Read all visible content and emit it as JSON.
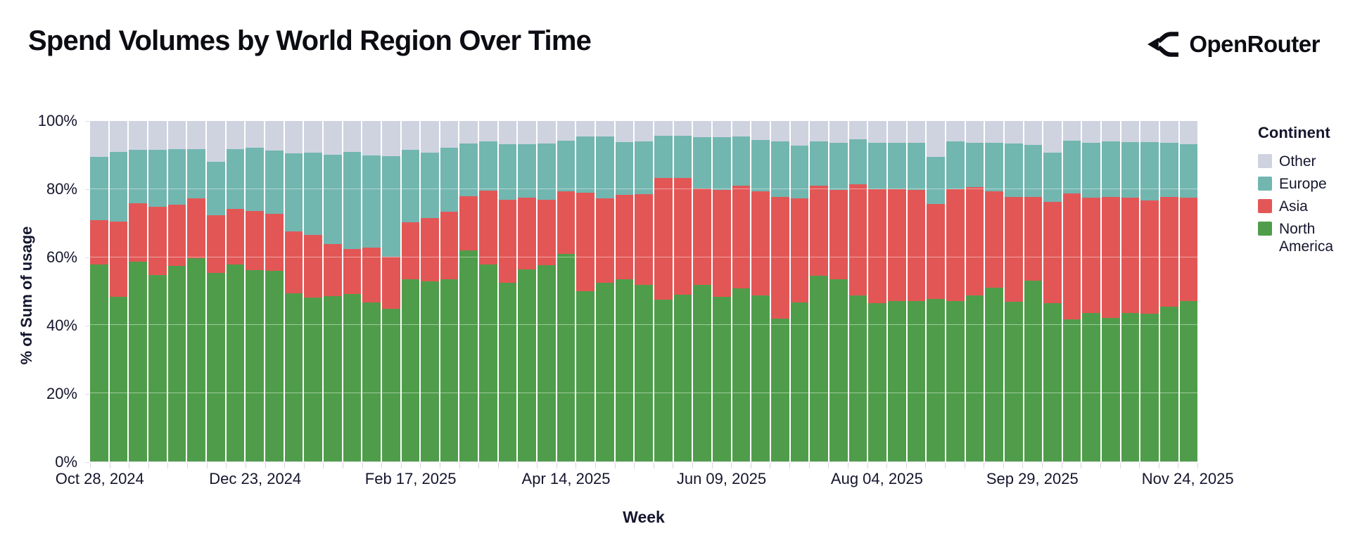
{
  "header": {
    "title": "Spend Volumes by World Region Over Time",
    "brand": "OpenRouter"
  },
  "chart_data": {
    "type": "bar",
    "stacked": true,
    "normalized_100pct": true,
    "title": "Spend Volumes by World Region Over Time",
    "xlabel": "Week",
    "ylabel": "% of Sum of usage",
    "ylim": [
      0,
      100
    ],
    "grid": "subtle white lines over bars",
    "n_bars": 57,
    "bar_frequency": "weekly",
    "yticks": [
      {
        "pct": 0,
        "label": "0%"
      },
      {
        "pct": 20,
        "label": "20%"
      },
      {
        "pct": 40,
        "label": "40%"
      },
      {
        "pct": 60,
        "label": "60%"
      },
      {
        "pct": 80,
        "label": "80%"
      },
      {
        "pct": 100,
        "label": "100%"
      }
    ],
    "gridlines_pct": [
      20,
      40,
      60,
      80
    ],
    "xticks": [
      {
        "index": 0,
        "label": "Oct 28, 2024"
      },
      {
        "index": 8,
        "label": "Dec 23, 2024"
      },
      {
        "index": 16,
        "label": "Feb 17, 2025"
      },
      {
        "index": 24,
        "label": "Apr 14, 2025"
      },
      {
        "index": 32,
        "label": "Jun 09, 2025"
      },
      {
        "index": 40,
        "label": "Aug 04, 2025"
      },
      {
        "index": 48,
        "label": "Sep 29, 2025"
      },
      {
        "index": 56,
        "label": "Nov 24, 2025"
      }
    ],
    "series": [
      {
        "name": "North America",
        "color": "#4f9d4a",
        "values": [
          57.8,
          48.4,
          58.6,
          54.7,
          57.5,
          59.7,
          55.3,
          57.8,
          56.1,
          55.9,
          49.4,
          48.1,
          48.6,
          49.2,
          46.7,
          44.8,
          53.6,
          52.8,
          53.6,
          61.9,
          57.9,
          52.4,
          56.3,
          57.7,
          61.0,
          50.0,
          52.4,
          53.6,
          51.9,
          47.6,
          49.0,
          51.9,
          48.3,
          50.8,
          48.8,
          41.9,
          46.7,
          54.5,
          53.6,
          48.8,
          46.4,
          47.1,
          47.2,
          47.8,
          47.2,
          48.8,
          51.0,
          46.9,
          53.1,
          46.4,
          41.7,
          43.6,
          42.1,
          43.6,
          43.4,
          45.5,
          47.2
        ]
      },
      {
        "name": "Asia",
        "color": "#e25756",
        "values": [
          13.1,
          22.1,
          17.3,
          20.1,
          18.0,
          17.6,
          17.1,
          16.4,
          17.4,
          16.8,
          18.2,
          18.5,
          15.3,
          13.1,
          16.1,
          15.4,
          16.7,
          18.6,
          19.8,
          16.0,
          21.6,
          24.4,
          21.1,
          19.2,
          18.3,
          29.0,
          24.8,
          24.7,
          26.7,
          35.6,
          34.2,
          28.3,
          31.5,
          30.1,
          30.6,
          35.8,
          30.5,
          26.4,
          26.2,
          32.6,
          33.6,
          32.9,
          32.5,
          27.9,
          32.8,
          31.7,
          28.3,
          30.7,
          24.5,
          29.8,
          37.1,
          33.8,
          35.6,
          33.8,
          33.3,
          32.2,
          30.2
        ]
      },
      {
        "name": "Europe",
        "color": "#72b6b0",
        "values": [
          18.5,
          20.5,
          15.7,
          16.8,
          16.3,
          14.5,
          15.6,
          17.5,
          18.7,
          18.6,
          22.8,
          24.1,
          26.1,
          28.7,
          27.1,
          29.5,
          21.2,
          19.4,
          18.7,
          15.4,
          14.5,
          16.3,
          15.7,
          16.4,
          15.0,
          16.4,
          18.2,
          15.5,
          15.4,
          12.5,
          12.5,
          15.0,
          15.4,
          14.5,
          15.1,
          16.4,
          15.6,
          13.1,
          13.8,
          13.3,
          13.6,
          13.6,
          13.9,
          13.7,
          14.0,
          13.1,
          14.3,
          15.7,
          15.3,
          14.6,
          15.5,
          16.2,
          16.3,
          16.4,
          17.1,
          15.9,
          15.7
        ]
      },
      {
        "name": "Other",
        "color": "#cfd3e0",
        "values": [
          10.6,
          9.0,
          8.4,
          8.4,
          8.2,
          8.2,
          12.0,
          8.3,
          7.8,
          8.7,
          9.6,
          9.3,
          10.0,
          9.0,
          10.1,
          10.3,
          8.5,
          9.2,
          7.9,
          6.7,
          6.0,
          6.9,
          6.9,
          6.7,
          5.7,
          4.6,
          4.6,
          6.2,
          6.0,
          4.3,
          4.3,
          4.8,
          4.8,
          4.6,
          5.5,
          5.9,
          7.2,
          6.0,
          6.4,
          5.3,
          6.4,
          6.4,
          6.4,
          10.6,
          6.0,
          6.4,
          6.4,
          6.7,
          7.1,
          9.2,
          5.7,
          6.4,
          6.0,
          6.2,
          6.2,
          6.4,
          6.9
        ]
      }
    ],
    "legend": {
      "title": "Continent",
      "position": "right",
      "entries_top_to_bottom": [
        {
          "label": "Other",
          "color": "#cfd3e0"
        },
        {
          "label": "Europe",
          "color": "#72b6b0"
        },
        {
          "label": "Asia",
          "color": "#e25756"
        },
        {
          "label": "North America",
          "color": "#4f9d4a"
        }
      ]
    }
  }
}
